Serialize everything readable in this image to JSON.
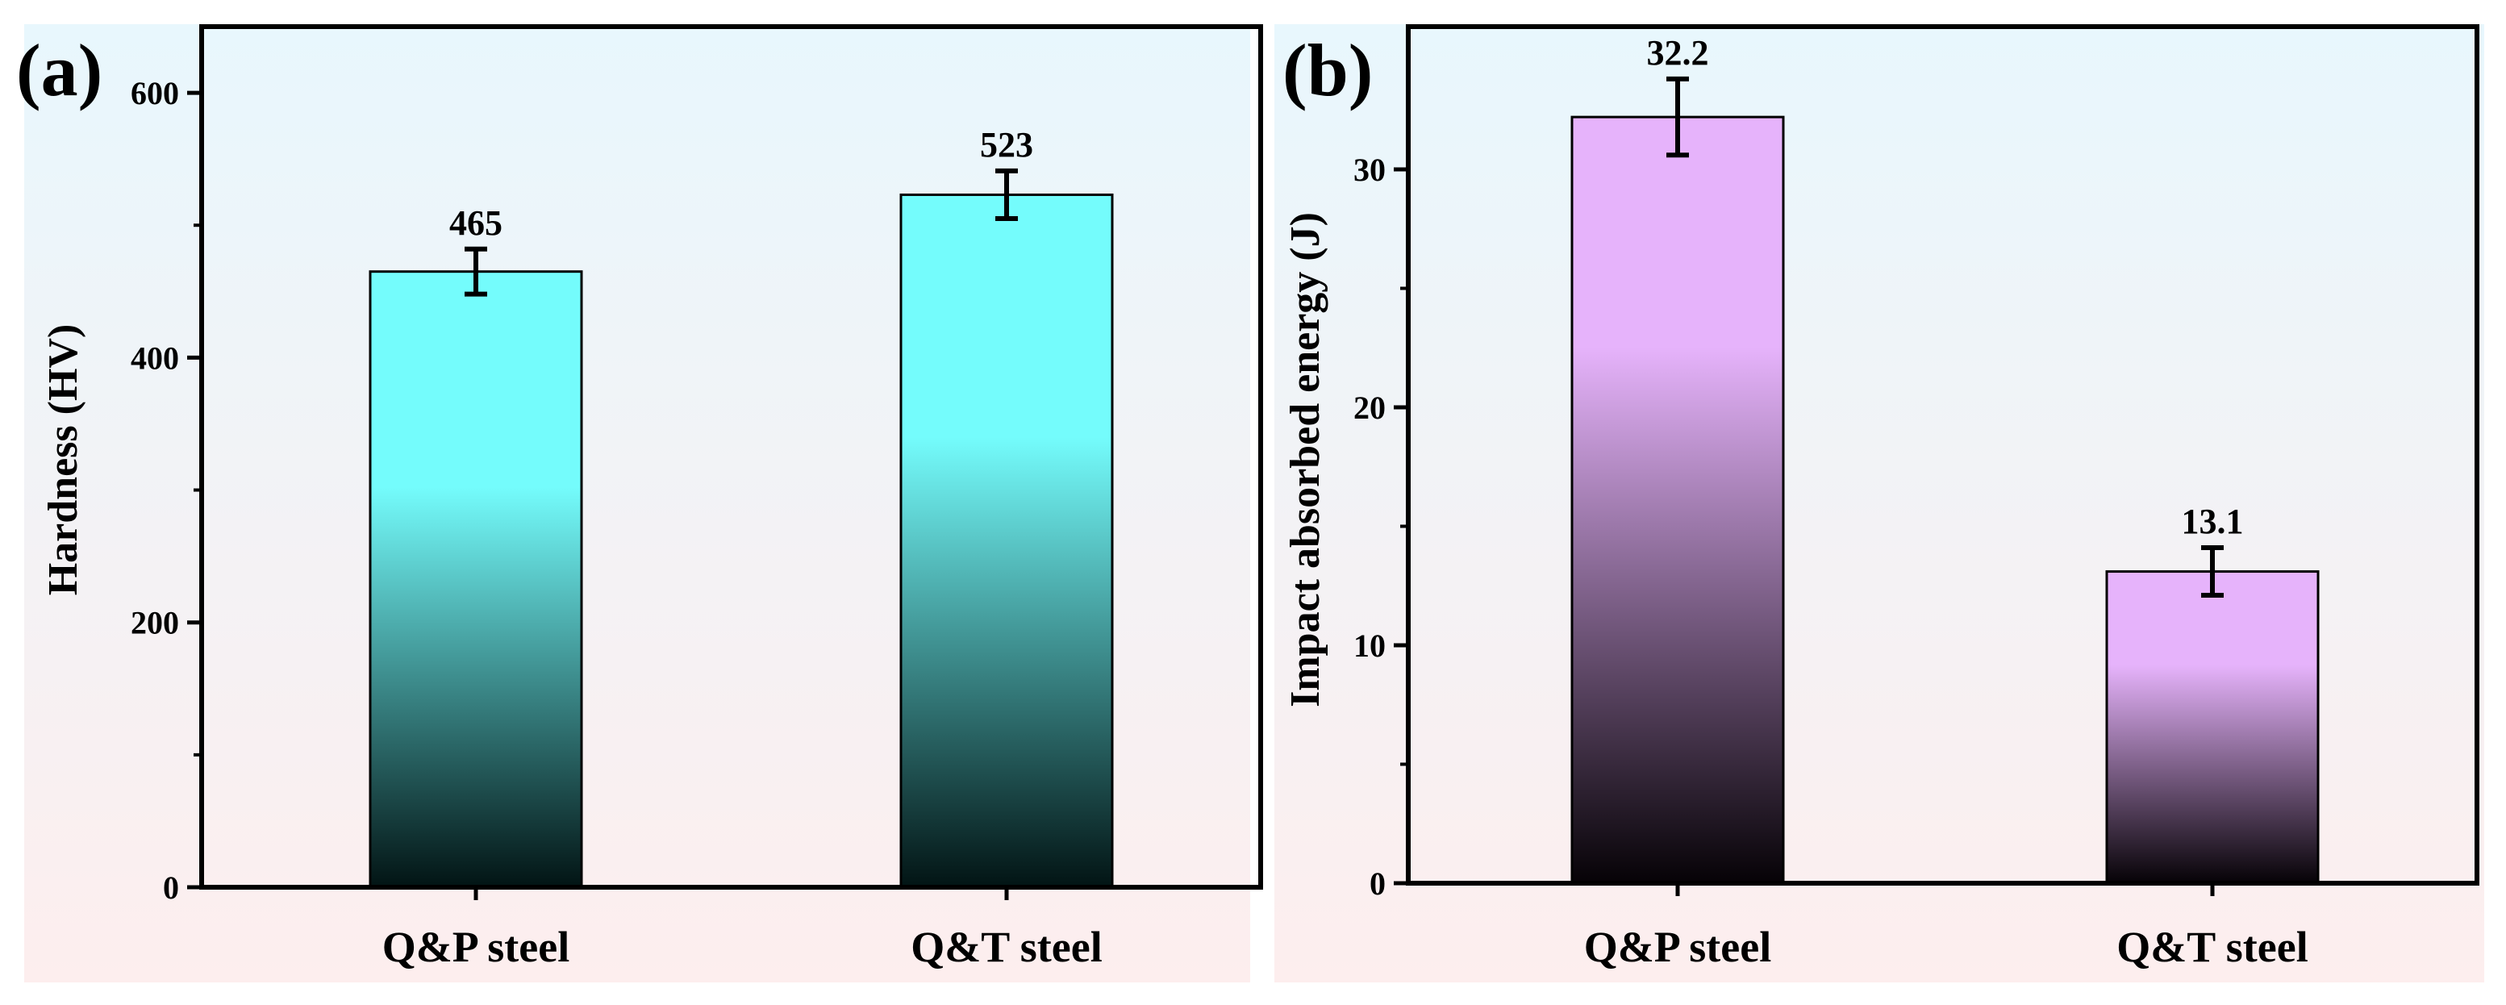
{
  "colors": {
    "bg_top": "#e8f7fd",
    "bg_bottom": "#fdeeee",
    "bar_a_top": "#74fcfc",
    "bar_a_bottom": "#021414",
    "bar_b_top": "#e6b3fb",
    "bar_b_bottom": "#060206",
    "axis": "#000000"
  },
  "chart_data": [
    {
      "panel": "(a)",
      "type": "bar",
      "categories": [
        "Q&P steel",
        "Q&T steel"
      ],
      "values": [
        465,
        523
      ],
      "errors": [
        17,
        18
      ],
      "value_labels": [
        "465",
        "523"
      ],
      "ylabel": "Hardness (HV)",
      "xlabel": "",
      "ylim": [
        0,
        650
      ],
      "yticks": [
        0,
        200,
        400,
        600
      ],
      "ytick_labels": [
        "0",
        "200",
        "400",
        "600"
      ],
      "grid": false
    },
    {
      "panel": "(b)",
      "type": "bar",
      "categories": [
        "Q&P steel",
        "Q&T steel"
      ],
      "values": [
        32.2,
        13.1
      ],
      "errors": [
        1.6,
        1.0
      ],
      "value_labels": [
        "32.2",
        "13.1"
      ],
      "ylabel": "Impact absorbed energy (J)",
      "xlabel": "",
      "ylim": [
        0,
        36
      ],
      "yticks": [
        0,
        10,
        20,
        30
      ],
      "ytick_labels": [
        "0",
        "10",
        "20",
        "30"
      ],
      "grid": false
    }
  ]
}
